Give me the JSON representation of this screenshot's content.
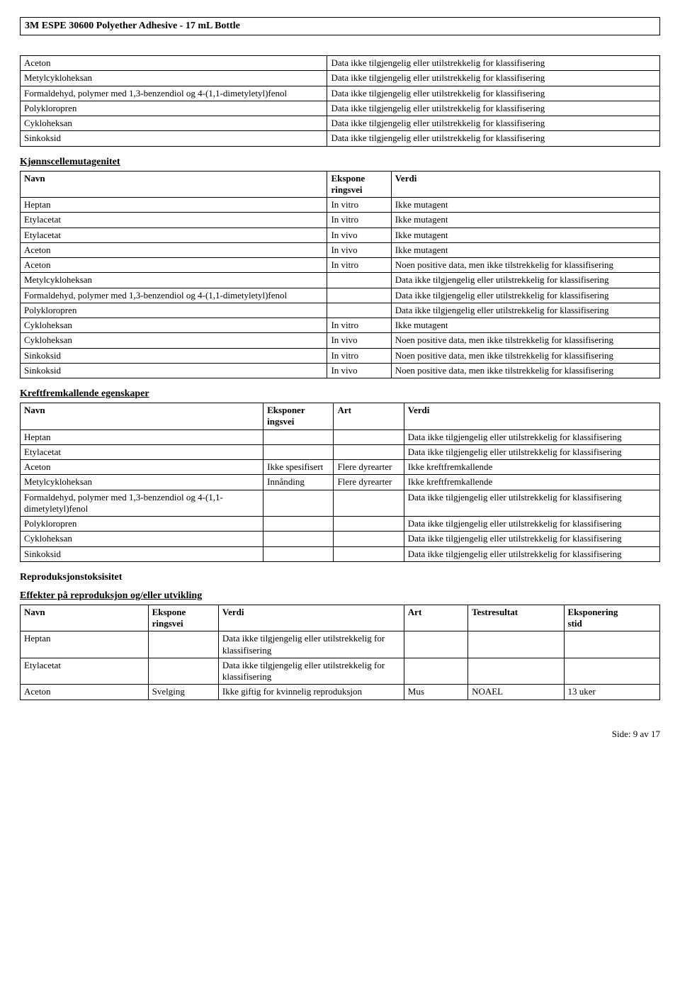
{
  "header_title": "3M ESPE 30600 Polyether Adhesive - 17 mL Bottle",
  "strings": {
    "na": "Data ikke tilgjengelig eller utilstrekkelig for klassifisering",
    "na_linebreak": "Data ikke tilgjengelig eller utilstrekkelig for klassifisering",
    "not_mutagenic": "Ikke mutagent",
    "some_positive": "Noen positive data, men ikke tilstrekkelig for klassifisering",
    "not_carcinogenic": "Ikke kreftfremkallende"
  },
  "table1": {
    "rows": [
      [
        "Aceton",
        "Data ikke tilgjengelig eller utilstrekkelig for klassifisering"
      ],
      [
        "Metylcykloheksan",
        "Data ikke tilgjengelig eller utilstrekkelig for klassifisering"
      ],
      [
        "Formaldehyd, polymer med 1,3-benzendiol og 4-(1,1-dimetyletyl)fenol",
        "Data ikke tilgjengelig eller utilstrekkelig for klassifisering"
      ],
      [
        "Polykloropren",
        "Data ikke tilgjengelig eller utilstrekkelig for klassifisering"
      ],
      [
        "Cykloheksan",
        "Data ikke tilgjengelig eller utilstrekkelig for klassifisering"
      ],
      [
        "Sinkoksid",
        "Data ikke tilgjengelig eller utilstrekkelig for klassifisering"
      ]
    ]
  },
  "section2": {
    "title": "Kjønnscellemutagenitet",
    "headers": [
      "Navn",
      "Eksponeringsvei",
      "Verdi"
    ],
    "rows": [
      [
        "Heptan",
        "In vitro",
        "Ikke mutagent"
      ],
      [
        "Etylacetat",
        "In vitro",
        "Ikke mutagent"
      ],
      [
        "Etylacetat",
        "In vivo",
        "Ikke mutagent"
      ],
      [
        "Aceton",
        "In vivo",
        "Ikke mutagent"
      ],
      [
        "Aceton",
        "In vitro",
        "Noen positive data, men ikke tilstrekkelig for klassifisering"
      ],
      [
        "Metylcykloheksan",
        "",
        "Data ikke tilgjengelig eller utilstrekkelig for klassifisering"
      ],
      [
        "Formaldehyd, polymer med 1,3-benzendiol og 4-(1,1-dimetyletyl)fenol",
        "",
        "Data ikke tilgjengelig eller utilstrekkelig for klassifisering"
      ],
      [
        "Polykloropren",
        "",
        "Data ikke tilgjengelig eller utilstrekkelig for klassifisering"
      ],
      [
        "Cykloheksan",
        "In vitro",
        "Ikke mutagent"
      ],
      [
        "Cykloheksan",
        "In vivo",
        "Noen positive data, men ikke tilstrekkelig for klassifisering"
      ],
      [
        "Sinkoksid",
        "In vitro",
        "Noen positive data, men ikke tilstrekkelig for klassifisering"
      ],
      [
        "Sinkoksid",
        "In vivo",
        "Noen positive data, men ikke tilstrekkelig for klassifisering"
      ]
    ]
  },
  "section3": {
    "title": "Kreftfremkallende egenskaper",
    "headers": [
      "Navn",
      "Eksponeringsvei",
      "Art",
      "Verdi"
    ],
    "rows": [
      [
        "Heptan",
        "",
        "",
        "Data ikke tilgjengelig eller utilstrekkelig for klassifisering"
      ],
      [
        "Etylacetat",
        "",
        "",
        "Data ikke tilgjengelig eller utilstrekkelig for klassifisering"
      ],
      [
        "Aceton",
        "Ikke spesifisert",
        "Flere dyrearter",
        "Ikke kreftfremkallende"
      ],
      [
        "Metylcykloheksan",
        "Innånding",
        "Flere dyrearter",
        "Ikke kreftfremkallende"
      ],
      [
        "Formaldehyd, polymer med 1,3-benzendiol og 4-(1,1-dimetyletyl)fenol",
        "",
        "",
        "Data ikke tilgjengelig eller utilstrekkelig for klassifisering"
      ],
      [
        "Polykloropren",
        "",
        "",
        "Data ikke tilgjengelig eller utilstrekkelig for klassifisering"
      ],
      [
        "Cykloheksan",
        "",
        "",
        "Data ikke tilgjengelig eller utilstrekkelig for klassifisering"
      ],
      [
        "Sinkoksid",
        "",
        "",
        "Data ikke tilgjengelig eller utilstrekkelig for klassifisering"
      ]
    ]
  },
  "section4": {
    "title": "Reproduksjonstoksisitet"
  },
  "section5": {
    "title": "Effekter på reproduksjon og/eller utvikling",
    "headers": [
      "Navn",
      "Eksponeringsvei",
      "Verdi",
      "Art",
      "Testresultat",
      "Eksponeringstid"
    ],
    "rows": [
      [
        "Heptan",
        "",
        "Data ikke tilgjengelig eller utilstrekkelig for klassifisering",
        "",
        "",
        ""
      ],
      [
        "Etylacetat",
        "",
        "Data ikke tilgjengelig eller utilstrekkelig for klassifisering",
        "",
        "",
        ""
      ],
      [
        "Aceton",
        "Svelging",
        "Ikke giftig for kvinnelig reproduksjon",
        "Mus",
        "NOAEL",
        "13 uker"
      ]
    ]
  },
  "footer": "Side: 9 av  17",
  "layout": {
    "col_widths_t1": [
      "48%",
      "52%"
    ],
    "col_widths_t2": [
      "48%",
      "10%",
      "42%"
    ],
    "col_widths_t3": [
      "38%",
      "11%",
      "11%",
      "40%"
    ],
    "col_widths_t4": [
      "20%",
      "11%",
      "29%",
      "10%",
      "15%",
      "15%"
    ]
  }
}
